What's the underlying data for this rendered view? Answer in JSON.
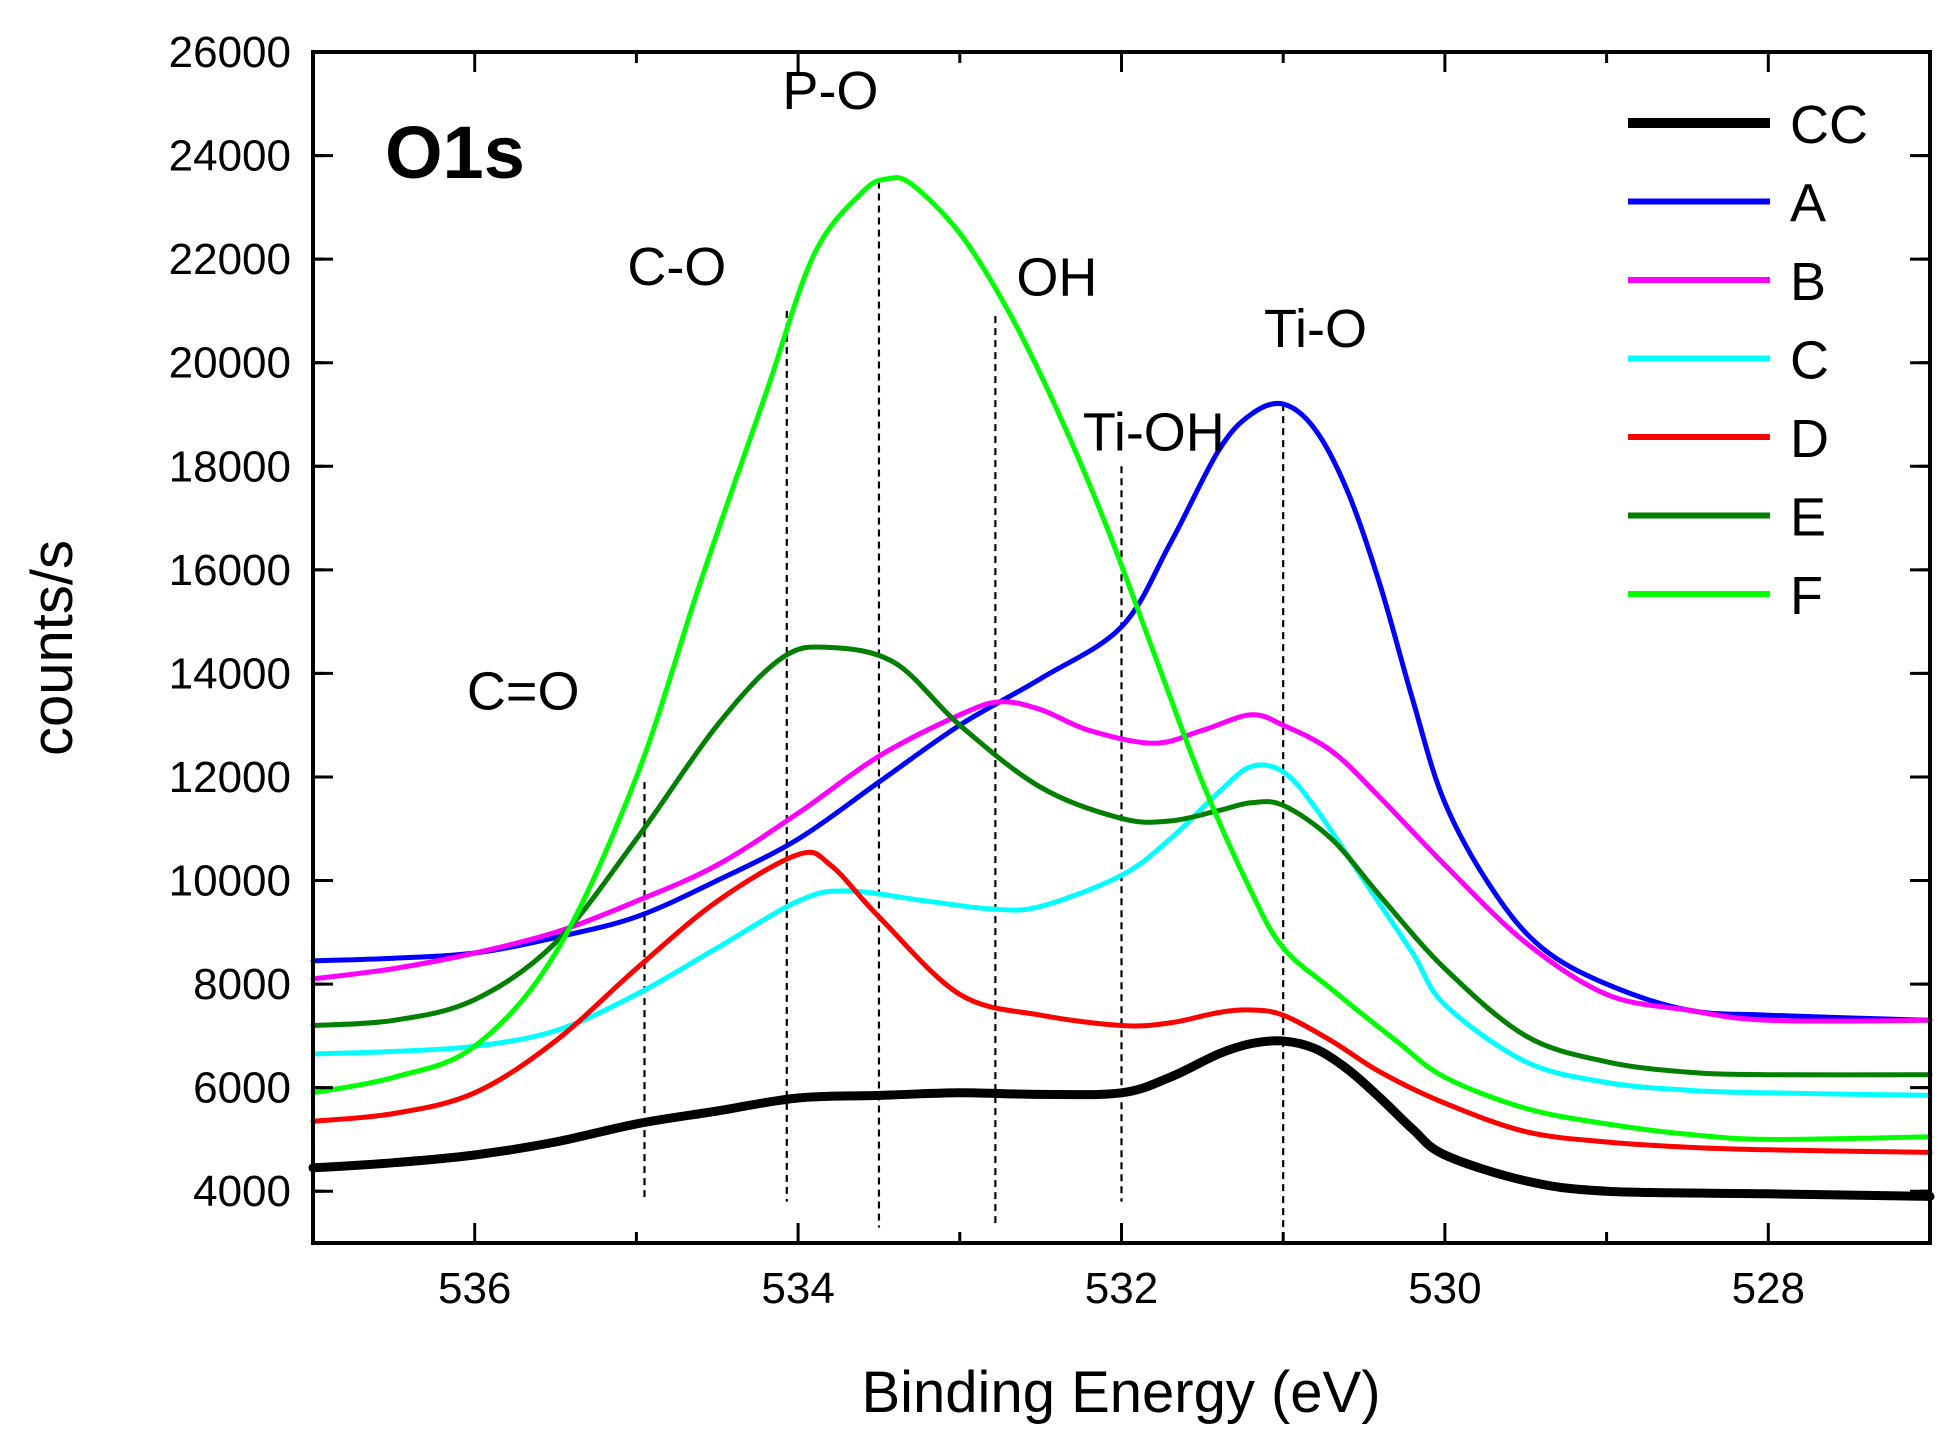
{
  "chart_data": {
    "type": "line",
    "panel_label": "O1s",
    "xlabel": "Binding Energy (eV)",
    "ylabel": "counts/s",
    "xlim": [
      537,
      527
    ],
    "ylim": [
      3000,
      26000
    ],
    "x_reversed": true,
    "x_ticks": [
      536,
      534,
      532,
      530,
      528
    ],
    "x_tick_labels": [
      "536",
      "534",
      "532",
      "530",
      "528"
    ],
    "y_ticks": [
      4000,
      6000,
      8000,
      10000,
      12000,
      14000,
      16000,
      18000,
      20000,
      22000,
      24000,
      26000
    ],
    "y_tick_labels": [
      "4000",
      "6000",
      "8000",
      "10000",
      "12000",
      "14000",
      "16000",
      "18000",
      "20000",
      "22000",
      "24000",
      "26000"
    ],
    "legend_position": "top-right",
    "annotations": [
      {
        "label": "C=O",
        "x": 534.95,
        "label_x": 535.7,
        "label_y": 13300,
        "line_top": 11900,
        "line_bottom": 3800
      },
      {
        "label": "C-O",
        "x": 534.07,
        "label_x": 534.75,
        "label_y": 21500,
        "line_top": 21000,
        "line_bottom": 3800
      },
      {
        "label": "P-O",
        "x": 533.5,
        "label_x": 533.8,
        "label_y": 24900,
        "line_top": 23500,
        "line_bottom": 3300
      },
      {
        "label": "OH",
        "x": 532.78,
        "label_x": 532.4,
        "label_y": 21300,
        "line_top": 20900,
        "line_bottom": 3300
      },
      {
        "label": "Ti-OH",
        "x": 532.0,
        "label_x": 531.8,
        "label_y": 18300,
        "line_top": 18000,
        "line_bottom": 3800
      },
      {
        "label": "Ti-O",
        "x": 531.0,
        "label_x": 530.8,
        "label_y": 20300,
        "line_top": 19200,
        "line_bottom": 3300
      }
    ],
    "series": [
      {
        "name": "CC",
        "color": "#000000",
        "width": 9,
        "x": [
          537,
          536.5,
          536,
          535.5,
          535,
          534.5,
          534,
          533.5,
          533,
          532.5,
          532,
          531.7,
          531.4,
          531.2,
          531.0,
          530.8,
          530.6,
          530.4,
          530.2,
          530,
          529.5,
          529,
          528,
          527
        ],
        "y": [
          4450,
          4550,
          4700,
          4950,
          5300,
          5550,
          5800,
          5850,
          5900,
          5870,
          5900,
          6200,
          6650,
          6850,
          6900,
          6750,
          6350,
          5800,
          5200,
          4700,
          4200,
          4000,
          3950,
          3900
        ]
      },
      {
        "name": "A",
        "color": "#0000ff",
        "width": 5,
        "x": [
          537,
          536.5,
          536,
          535.5,
          535,
          534.5,
          534,
          533.5,
          533,
          532.5,
          532,
          531.7,
          531.4,
          531.2,
          531.0,
          530.8,
          530.6,
          530.4,
          530.2,
          530,
          529.7,
          529.4,
          529,
          528.5,
          528,
          527
        ],
        "y": [
          8450,
          8500,
          8600,
          8900,
          9300,
          10000,
          10800,
          11900,
          13000,
          13900,
          14900,
          16500,
          18300,
          19000,
          19200,
          18700,
          17500,
          15700,
          13500,
          11500,
          9800,
          8700,
          8000,
          7500,
          7400,
          7300
        ]
      },
      {
        "name": "B",
        "color": "#ff00ff",
        "width": 5,
        "x": [
          537,
          536.5,
          536,
          535.5,
          535,
          534.5,
          534,
          533.5,
          533,
          532.75,
          532.5,
          532.2,
          531.8,
          531.5,
          531.2,
          531.0,
          530.7,
          530.4,
          530,
          529.5,
          529,
          528.5,
          528,
          527
        ],
        "y": [
          8100,
          8300,
          8600,
          9000,
          9600,
          10300,
          11300,
          12400,
          13200,
          13450,
          13300,
          12900,
          12650,
          12900,
          13200,
          13000,
          12500,
          11600,
          10300,
          8800,
          7800,
          7500,
          7300,
          7300
        ]
      },
      {
        "name": "C",
        "color": "#00ffff",
        "width": 5,
        "x": [
          537,
          536.5,
          536,
          535.5,
          535,
          534.5,
          534,
          533.7,
          533.2,
          532.8,
          532.5,
          532,
          531.7,
          531.4,
          531.2,
          531.0,
          530.8,
          530.5,
          530.2,
          530,
          529.5,
          529,
          528.5,
          528,
          527
        ],
        "y": [
          6650,
          6700,
          6800,
          7100,
          7800,
          8700,
          9600,
          9800,
          9600,
          9450,
          9500,
          10100,
          10800,
          11700,
          12200,
          12100,
          11400,
          10000,
          8600,
          7600,
          6500,
          6100,
          5950,
          5900,
          5850
        ]
      },
      {
        "name": "D",
        "color": "#ff0000",
        "width": 5,
        "x": [
          537,
          536.5,
          536,
          535.5,
          535,
          534.5,
          534,
          533.8,
          533.5,
          533,
          532.5,
          532,
          531.7,
          531.4,
          531.2,
          531.0,
          530.7,
          530.4,
          530,
          529.5,
          529,
          528.5,
          528,
          527
        ],
        "y": [
          5350,
          5500,
          5900,
          6900,
          8300,
          9600,
          10500,
          10300,
          9300,
          7800,
          7400,
          7200,
          7250,
          7450,
          7500,
          7400,
          6900,
          6300,
          5700,
          5150,
          4950,
          4850,
          4800,
          4750
        ]
      },
      {
        "name": "E",
        "color": "#007f00",
        "width": 5,
        "x": [
          537,
          536.5,
          536,
          535.5,
          535,
          534.5,
          534.1,
          533.8,
          533.4,
          533,
          532.5,
          532,
          531.7,
          531.4,
          531.2,
          531.0,
          530.7,
          530.4,
          530,
          529.5,
          529,
          528.5,
          528,
          527
        ],
        "y": [
          7200,
          7300,
          7700,
          8800,
          10800,
          13000,
          14300,
          14500,
          14200,
          13000,
          11800,
          11200,
          11150,
          11350,
          11500,
          11450,
          10800,
          9700,
          8300,
          7000,
          6500,
          6300,
          6250,
          6250
        ]
      },
      {
        "name": "F",
        "color": "#00ff00",
        "width": 5,
        "x": [
          537,
          536.5,
          536,
          535.5,
          535,
          534.6,
          534.2,
          533.9,
          533.6,
          533.45,
          533.3,
          533,
          532.7,
          532.4,
          532.1,
          531.8,
          531.5,
          531.2,
          531.0,
          530.7,
          530.3,
          530,
          529.5,
          529,
          528.5,
          528,
          527
        ],
        "y": [
          5900,
          6200,
          6800,
          8600,
          12000,
          15800,
          19400,
          22100,
          23300,
          23550,
          23450,
          22500,
          21000,
          19100,
          16900,
          14400,
          11900,
          9800,
          8700,
          7900,
          6900,
          6200,
          5600,
          5300,
          5100,
          5000,
          5050
        ]
      }
    ]
  }
}
